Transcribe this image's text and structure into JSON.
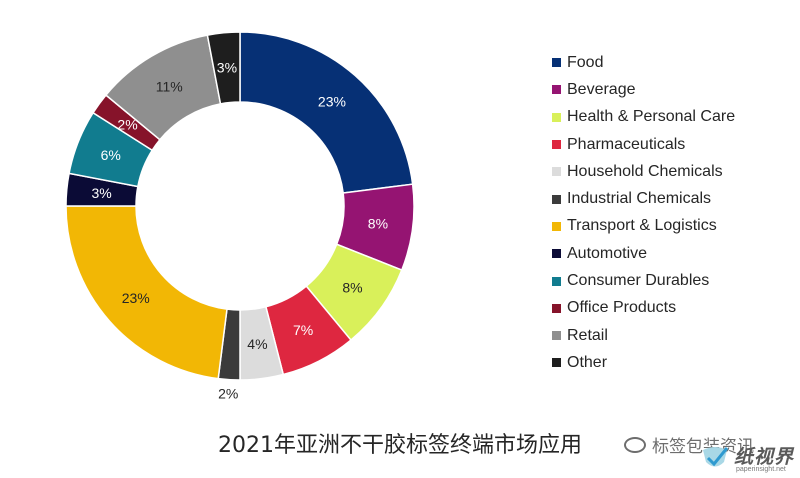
{
  "chart_data": {
    "type": "pie",
    "subtype": "donut",
    "title": "2021年亚洲不干胶标签终端市场应用",
    "legend_position": "right",
    "slices": [
      {
        "label": "Food",
        "value": 23,
        "value_label": "23%",
        "color": "#063075"
      },
      {
        "label": "Beverage",
        "value": 8,
        "value_label": "8%",
        "color": "#951472"
      },
      {
        "label": "Health & Personal Care",
        "value": 8,
        "value_label": "8%",
        "color": "#d9f05a"
      },
      {
        "label": "Pharmaceuticals",
        "value": 7,
        "value_label": "7%",
        "color": "#de2740"
      },
      {
        "label": "Household Chemicals",
        "value": 4,
        "value_label": "4%",
        "color": "#dcdcdc"
      },
      {
        "label": "Industrial Chemicals",
        "value": 2,
        "value_label": "2%",
        "color": "#3b3b3b"
      },
      {
        "label": "Transport & Logistics",
        "value": 23,
        "value_label": "23%",
        "color": "#f2b705"
      },
      {
        "label": "Automotive",
        "value": 3,
        "value_label": "3%",
        "color": "#0b0b36"
      },
      {
        "label": "Consumer Durables",
        "value": 6,
        "value_label": "6%",
        "color": "#117c8f"
      },
      {
        "label": "Office Products",
        "value": 2,
        "value_label": "2%",
        "color": "#86132a"
      },
      {
        "label": "Retail",
        "value": 11,
        "value_label": "11%",
        "color": "#8f8f8f"
      },
      {
        "label": "Other",
        "value": 3,
        "value_label": "3%",
        "color": "#1e1e1e"
      }
    ]
  },
  "watermark": {
    "text": "标签包装资讯"
  },
  "logo": {
    "name": "纸视界",
    "url": "paperinsight.net"
  }
}
